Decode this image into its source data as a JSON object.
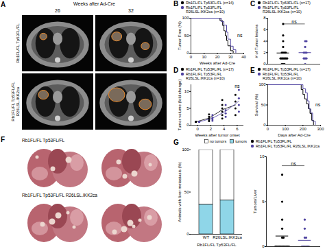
{
  "chart_data": [
    {
      "panel": "B",
      "type": "line",
      "line_style": "step",
      "xlabel": "Weeks after Ad-Cre",
      "ylabel": "Tumor Free (%)",
      "xlim": [
        0,
        40
      ],
      "xticks": [
        0,
        10,
        20,
        30,
        40
      ],
      "ylim": [
        0,
        100
      ],
      "yticks": [
        0,
        50,
        100
      ],
      "legend": "top",
      "series": [
        {
          "name": "Rb1FL/FL Tp53FL/FL (n=14)",
          "color": "#000000",
          "x": [
            0,
            22,
            24,
            25,
            26,
            27,
            28,
            30,
            32
          ],
          "values": [
            100,
            93,
            79,
            64,
            50,
            36,
            21,
            7,
            0
          ]
        },
        {
          "name": "Rb1FL/FL Tp53FL/FL R26LSL.IKK2ca (n=10)",
          "color": "#4f43a0",
          "x": [
            0,
            23,
            25,
            27,
            28,
            30,
            32,
            34
          ],
          "values": [
            100,
            90,
            80,
            60,
            40,
            20,
            10,
            0
          ]
        }
      ],
      "annotations": [
        {
          "text": "ns",
          "x": 37,
          "y": 50
        }
      ]
    },
    {
      "panel": "C",
      "type": "dot",
      "marker": "circle",
      "ylabel": "# of Tumor lesions",
      "ylim": [
        0,
        8
      ],
      "yticks": [
        0,
        2,
        4,
        6,
        8
      ],
      "tick_labels": "y",
      "legend": "top",
      "series": [
        {
          "name": "Rb1FL/FL Tp53FL/FL (n=17)",
          "color": "#000000",
          "values": [
            0,
            0,
            0,
            1,
            1,
            1,
            1,
            1,
            1,
            2,
            2,
            2,
            2,
            3,
            4,
            5,
            7
          ]
        },
        {
          "name": "Rb1FL/FL Tp53FL/FL R26LSL.IKK2ca (n=10)",
          "color": "#4f43a0",
          "values": [
            0,
            1,
            1,
            1,
            2,
            2,
            2,
            3,
            4,
            4
          ]
        }
      ],
      "annotations": [
        {
          "text": "ns",
          "y": 7
        }
      ]
    },
    {
      "panel": "D",
      "type": "scatter",
      "marker": "circle",
      "xlabel": "Weeks after tumor onset",
      "ylabel": "Tumor volume (fold change)",
      "xlim": [
        -1,
        7
      ],
      "xticks": [
        0,
        2,
        4,
        6
      ],
      "ylim": [
        0,
        12
      ],
      "yticks": [
        0,
        5,
        10
      ],
      "legend": "top",
      "series": [
        {
          "name": "Rb1FL/FL Tp53FL/FL (n=17)",
          "color": "#000000",
          "x": [
            0,
            0,
            0,
            0,
            2,
            2,
            2,
            2,
            2,
            4,
            4,
            4,
            4,
            4,
            4,
            6,
            6,
            6,
            6
          ],
          "values": [
            1,
            1,
            1,
            1,
            1.2,
            1.6,
            2,
            2.5,
            3.2,
            2,
            3,
            4,
            5,
            6,
            7.5,
            3,
            5,
            7,
            9
          ]
        },
        {
          "name": "Rb1FL/FL Tp53FL/FL R26LSL.IKK2ca (n=10)",
          "color": "#4f43a0",
          "x": [
            0,
            0,
            0,
            0,
            2,
            2,
            2,
            2,
            4,
            4,
            4,
            4,
            6,
            6,
            6,
            6
          ],
          "values": [
            1,
            1,
            1,
            1,
            1.3,
            1.8,
            2.2,
            3,
            2.5,
            3.5,
            4.5,
            6,
            4,
            6,
            8,
            10.5
          ]
        }
      ],
      "annotations": [
        {
          "text": "ns",
          "x": 6,
          "y": 11.5
        }
      ]
    },
    {
      "panel": "E",
      "type": "line",
      "line_style": "step",
      "xlabel": "Days after Ad-Cre",
      "ylabel": "Survival (%)",
      "xlim": [
        0,
        300
      ],
      "xticks": [
        0,
        100,
        200,
        300
      ],
      "ylim": [
        0,
        100
      ],
      "yticks": [
        0,
        50,
        100
      ],
      "legend": "top",
      "series": [
        {
          "name": "Rb1FL/FL Tp53FL/FL (n=17)",
          "color": "#000000",
          "x": [
            0,
            190,
            200,
            210,
            220,
            230,
            240,
            250,
            260
          ],
          "values": [
            100,
            88,
            76,
            65,
            53,
            41,
            29,
            12,
            0
          ]
        },
        {
          "name": "Rb1FL/FL Tp53FL/FL R26LSL.IKK2ca (n=10)",
          "color": "#4f43a0",
          "x": [
            0,
            200,
            215,
            225,
            235,
            245,
            255,
            270
          ],
          "values": [
            100,
            90,
            80,
            60,
            40,
            30,
            10,
            0
          ]
        }
      ],
      "annotations": [
        {
          "text": "ns",
          "x": 285,
          "y": 50
        }
      ]
    },
    {
      "panel": "G",
      "type": "bar",
      "stacked": true,
      "ylabel": "Animals with liver metastasis (%)",
      "xlabel": "Rb1FL/FL Tp53FL/FL",
      "categories": [
        "WT",
        "R26LSL.IKK2ca"
      ],
      "ylim": [
        0,
        100
      ],
      "yticks": [
        0,
        50,
        100
      ],
      "legend": "top right",
      "series": [
        {
          "name": "no tumors",
          "color": "#ffffff",
          "values": [
            65,
            60
          ]
        },
        {
          "name": "tumors",
          "color": "#8fd6e8",
          "values": [
            35,
            40
          ]
        }
      ]
    },
    {
      "panel": "G",
      "type": "dot",
      "marker": "circle",
      "ylabel": "Tumors/Liver",
      "ylim": [
        0,
        10
      ],
      "yticks": [
        0,
        5,
        10
      ],
      "tick_labels": "y",
      "legend": "top",
      "series": [
        {
          "name": "Rb1FL/FL Tp53FL/FL",
          "color": "#000000",
          "values": [
            0,
            0,
            0,
            0,
            0,
            0,
            0,
            0,
            0,
            0,
            0,
            1,
            1,
            2,
            3,
            5,
            8
          ]
        },
        {
          "name": "Rb1FL/FL Tp53FL/FL R26LSL.IKK2ca",
          "color": "#4f43a0",
          "values": [
            0,
            0,
            0,
            0,
            0,
            0,
            1,
            1,
            2,
            3
          ]
        }
      ],
      "annotations": [
        {
          "text": "ns",
          "y": 9
        }
      ]
    }
  ],
  "images": [
    {
      "panel": "A",
      "xlabel": "Weeks after Ad-Cre",
      "columns": [
        "26",
        "32"
      ],
      "rows": [
        "Rb1FL/FL Tp53FL/FL",
        "Rb1FL/FL Tp53FL/FL R26LSL.IKK2ca"
      ]
    },
    {
      "panel": "F",
      "rows": [
        "Rb1FL/FL Tp53FL/FL",
        "Rb1FL/FL Tp53FL/FL R26LSL.IKK2ca"
      ]
    }
  ]
}
